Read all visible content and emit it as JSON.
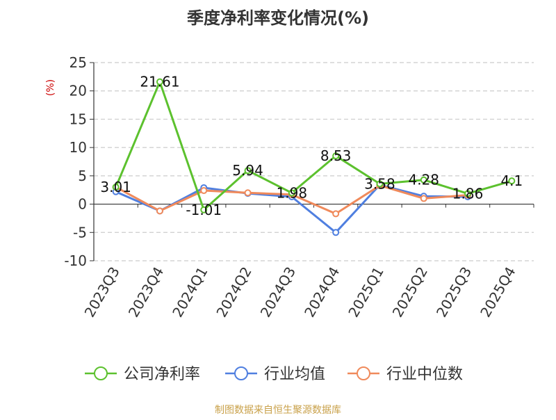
{
  "chart_data": {
    "type": "line",
    "title": "季度净利率变化情况(%)",
    "ylabel": "(%)",
    "categories": [
      "2023Q3",
      "2023Q4",
      "2024Q1",
      "2024Q2",
      "2024Q3",
      "2024Q4",
      "2025Q1",
      "2025Q2",
      "2025Q3",
      "2025Q4"
    ],
    "y_ticks": [
      25,
      20,
      15,
      10,
      5,
      0,
      -5,
      -10
    ],
    "ylim": [
      -10,
      25
    ],
    "grid": true,
    "legend_position": "bottom",
    "series": [
      {
        "name": "公司净利率",
        "color": "#5cc12e",
        "values": [
          3.01,
          21.61,
          -1.01,
          5.94,
          1.98,
          8.53,
          3.58,
          4.28,
          1.86,
          4.1
        ],
        "labels": [
          "3.01",
          "21.61",
          "-1.01",
          "5.94",
          "1.98",
          "8.53",
          "3.58",
          "4.28",
          "1.86",
          "4.1"
        ]
      },
      {
        "name": "行业均值",
        "color": "#4f7fe0",
        "values": [
          2.2,
          -1.2,
          2.9,
          1.9,
          1.3,
          -5.0,
          3.4,
          1.4,
          1.3,
          null
        ]
      },
      {
        "name": "行业中位数",
        "color": "#f08a5b",
        "values": [
          3.0,
          -1.2,
          2.4,
          2.0,
          1.7,
          -1.7,
          3.3,
          1.0,
          1.6,
          null
        ]
      }
    ]
  },
  "footer": {
    "source": "制图数据来自恒生聚源数据库"
  }
}
